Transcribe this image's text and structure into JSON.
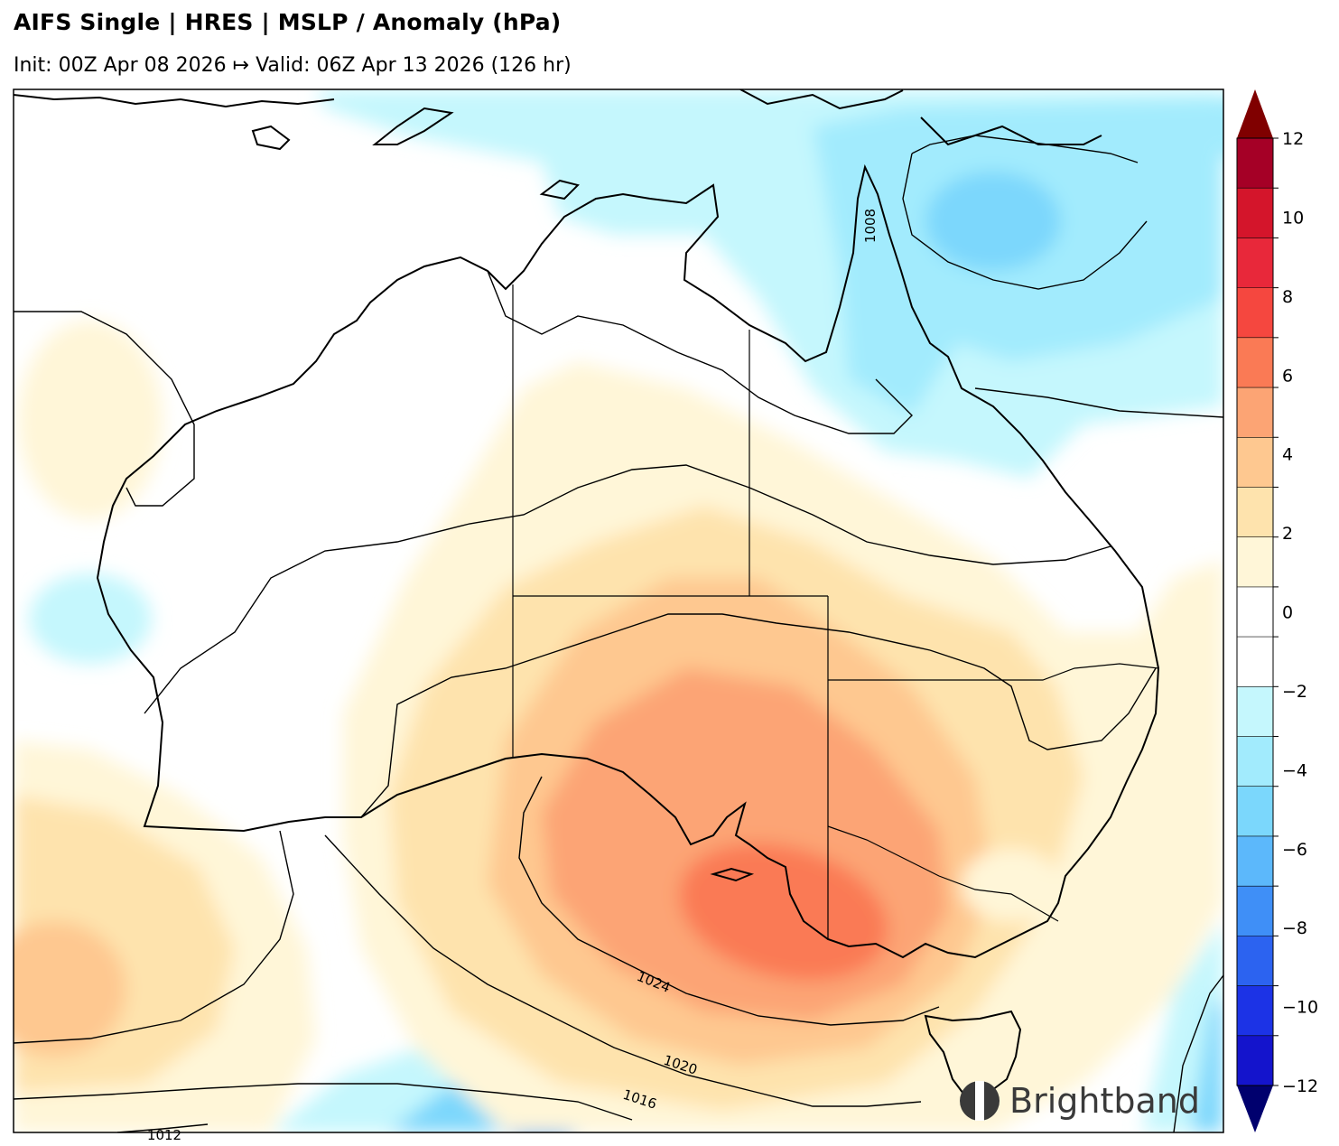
{
  "header": {
    "title": "AIFS Single | HRES | MSLP / Anomaly (hPa)",
    "subtitle": "Init: 00Z Apr 08 2026 ↦ Valid: 06Z Apr 13 2026 (126 hr)"
  },
  "colorbar": {
    "labels": [
      "12",
      "10",
      "8",
      "6",
      "4",
      "2",
      "0",
      "−2",
      "−4",
      "−6",
      "−8",
      "−10",
      "−12"
    ],
    "colors": [
      "#a50026",
      "#d4152b",
      "#e8283a",
      "#f5473f",
      "#fa7a55",
      "#fca474",
      "#fec890",
      "#fee3ad",
      "#fff6d8",
      "#ffffff",
      "#ffffff",
      "#c5f7fd",
      "#a2ebfd",
      "#7bd7fc",
      "#5cb8fb",
      "#3f8ff7",
      "#2c63f0",
      "#1c33e6",
      "#1414cc"
    ],
    "extend_max_color": "#800000",
    "extend_min_color": "#00006e"
  },
  "isobar_labels": {
    "l1008": "1008",
    "l1024": "1024",
    "l1020": "1020",
    "l1016": "1016",
    "l1012": "1012"
  },
  "branding": {
    "logo_text": "Brightband"
  }
}
